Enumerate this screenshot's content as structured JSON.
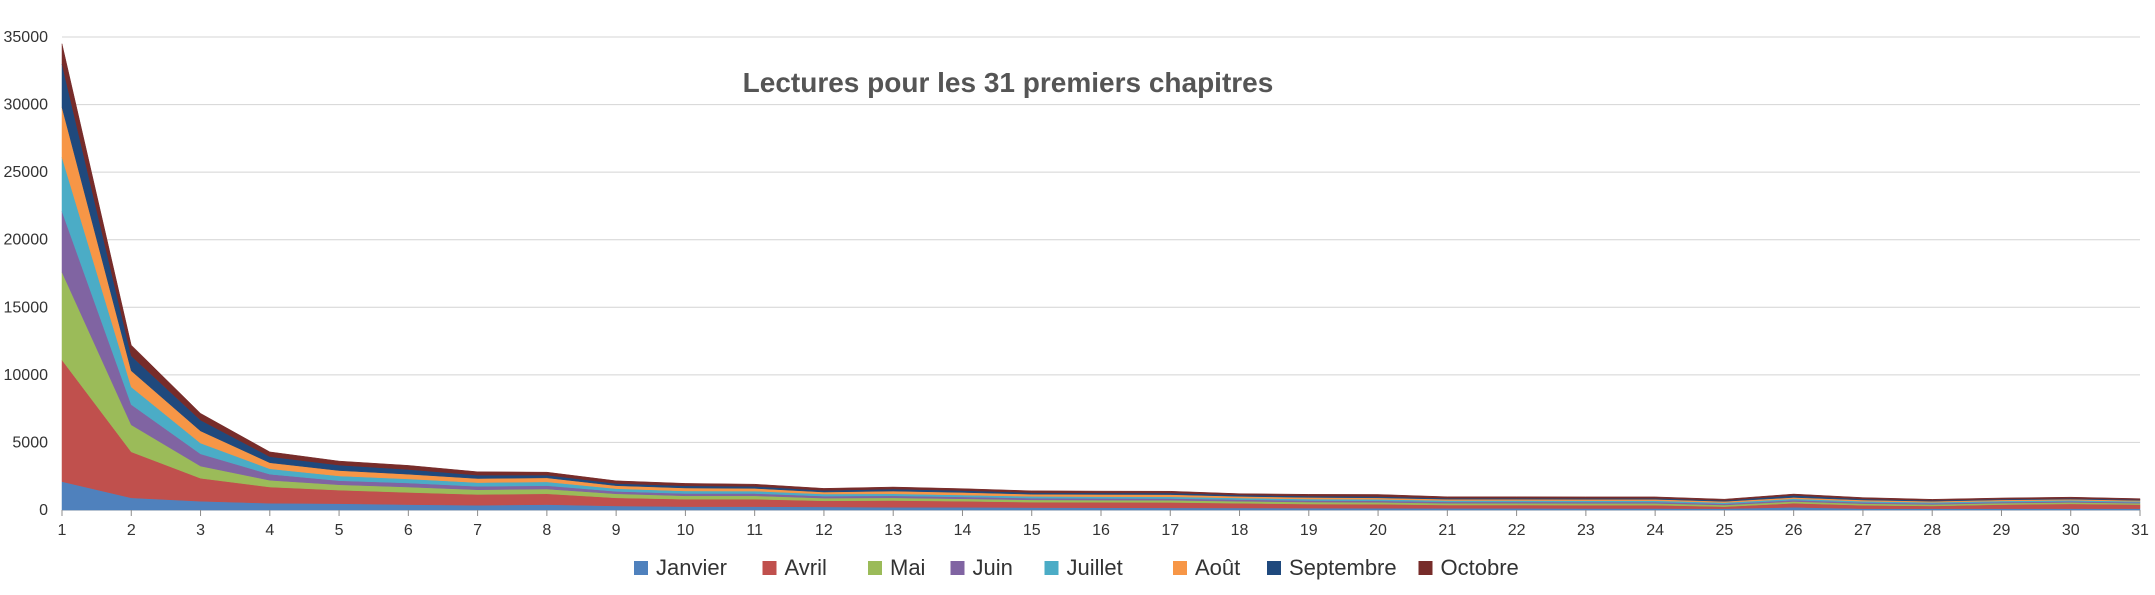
{
  "chart_data": {
    "type": "area",
    "stacked": true,
    "title": "Lectures pour les 31 premiers chapitres",
    "xlabel": "",
    "ylabel": "",
    "ylim": [
      0,
      35000
    ],
    "yticks": [
      0,
      5000,
      10000,
      15000,
      20000,
      25000,
      30000,
      35000
    ],
    "categories": [
      "1",
      "2",
      "3",
      "4",
      "5",
      "6",
      "7",
      "8",
      "9",
      "10",
      "11",
      "12",
      "13",
      "14",
      "15",
      "16",
      "17",
      "18",
      "19",
      "20",
      "21",
      "22",
      "23",
      "24",
      "25",
      "26",
      "27",
      "28",
      "29",
      "30",
      "31"
    ],
    "grid": "horizontal",
    "legend_position": "bottom",
    "series": [
      {
        "name": "Janvier",
        "color": "#4F81BD",
        "values": [
          2100,
          900,
          650,
          500,
          470,
          400,
          350,
          400,
          300,
          250,
          250,
          230,
          200,
          200,
          180,
          170,
          160,
          150,
          140,
          130,
          120,
          120,
          110,
          110,
          100,
          200,
          100,
          100,
          100,
          100,
          100
        ]
      },
      {
        "name": "Avril",
        "color": "#C0504D",
        "values": [
          9000,
          3400,
          1700,
          1200,
          1000,
          900,
          800,
          800,
          600,
          550,
          550,
          450,
          500,
          450,
          400,
          400,
          400,
          350,
          300,
          300,
          250,
          250,
          250,
          250,
          150,
          300,
          250,
          200,
          300,
          350,
          300
        ]
      },
      {
        "name": "Mai",
        "color": "#9BBB59",
        "values": [
          6500,
          2000,
          900,
          500,
          400,
          400,
          350,
          350,
          300,
          250,
          250,
          200,
          200,
          180,
          170,
          160,
          160,
          150,
          150,
          140,
          130,
          130,
          130,
          130,
          120,
          130,
          120,
          110,
          110,
          110,
          100
        ]
      },
      {
        "name": "Juin",
        "color": "#8064A2",
        "values": [
          4500,
          1500,
          900,
          450,
          300,
          300,
          250,
          250,
          180,
          170,
          170,
          150,
          150,
          140,
          130,
          130,
          130,
          120,
          110,
          110,
          100,
          100,
          100,
          100,
          90,
          100,
          90,
          80,
          80,
          80,
          70
        ]
      },
      {
        "name": "Juillet",
        "color": "#4BACC6",
        "values": [
          4000,
          1300,
          800,
          400,
          350,
          300,
          280,
          280,
          200,
          190,
          180,
          150,
          150,
          140,
          130,
          130,
          130,
          120,
          110,
          110,
          100,
          100,
          100,
          100,
          90,
          100,
          90,
          80,
          80,
          80,
          70
        ]
      },
      {
        "name": "Août",
        "color": "#F79646",
        "values": [
          3700,
          1200,
          900,
          450,
          400,
          350,
          300,
          300,
          220,
          220,
          200,
          150,
          200,
          190,
          160,
          160,
          160,
          120,
          120,
          110,
          100,
          100,
          100,
          100,
          90,
          100,
          90,
          80,
          80,
          80,
          70
        ]
      },
      {
        "name": "Septembre",
        "color": "#1F497D",
        "values": [
          3200,
          1100,
          800,
          450,
          400,
          350,
          250,
          200,
          160,
          160,
          150,
          120,
          150,
          140,
          120,
          120,
          120,
          100,
          100,
          100,
          80,
          80,
          80,
          80,
          70,
          150,
          80,
          60,
          60,
          60,
          60
        ]
      },
      {
        "name": "Octobre",
        "color": "#772C2A",
        "values": [
          1500,
          800,
          500,
          350,
          300,
          300,
          250,
          220,
          200,
          180,
          160,
          150,
          150,
          140,
          130,
          130,
          130,
          100,
          130,
          150,
          100,
          100,
          100,
          100,
          90,
          100,
          100,
          80,
          80,
          90,
          70
        ]
      }
    ]
  }
}
